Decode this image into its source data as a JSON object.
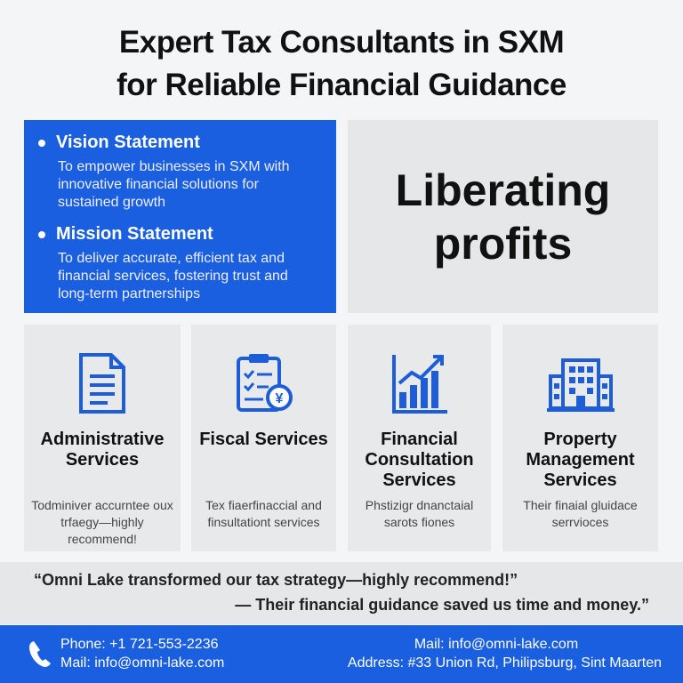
{
  "title": {
    "line1": "Expert Tax Consultants in SXM",
    "line2": "for Reliable Financial Guidance"
  },
  "vision": {
    "heading": "Vision Statement",
    "text": "To empower businesses in SXM with innovative financial solutions for sustained growth"
  },
  "mission": {
    "heading": "Mission Statement",
    "text": "To deliver accurate, efficient tax and financial services, fostering trust and long-term partnerships"
  },
  "slogan": {
    "line1": "Liberating",
    "line2": "profits"
  },
  "services": [
    {
      "icon": "document-icon",
      "title": "Administrative Services",
      "desc": "Todminiver accurntee oux trfaegy—highly recommend!"
    },
    {
      "icon": "clipboard-checklist-icon",
      "title": "Fiscal Services",
      "desc": "Tex fiaerfinaccial and finsultationt services"
    },
    {
      "icon": "bar-chart-growth-icon",
      "title": "Financial Consultation Services",
      "desc": "Phstizigr dnanctaial sarots fiones"
    },
    {
      "icon": "building-icon",
      "title": "Property Management Services",
      "desc": "Their finaial gluidace serrvioces"
    }
  ],
  "testimonial": {
    "quote": "“Omni Lake transformed our tax strategy—highly recommend!”",
    "quote2": "— Their financial guidance saved us time and money.”"
  },
  "footer": {
    "phone": "Phone: +1 721-553-2236",
    "mail_left": "Mail: info@omni-lake.com",
    "mail_right": "Mail: info@omni-lake.com",
    "address": "Address: #33 Union Rd, Philipsburg, Sint Maarten"
  },
  "colors": {
    "brand_blue": "#1a5fe0",
    "icon_blue": "#1d5ed8"
  }
}
